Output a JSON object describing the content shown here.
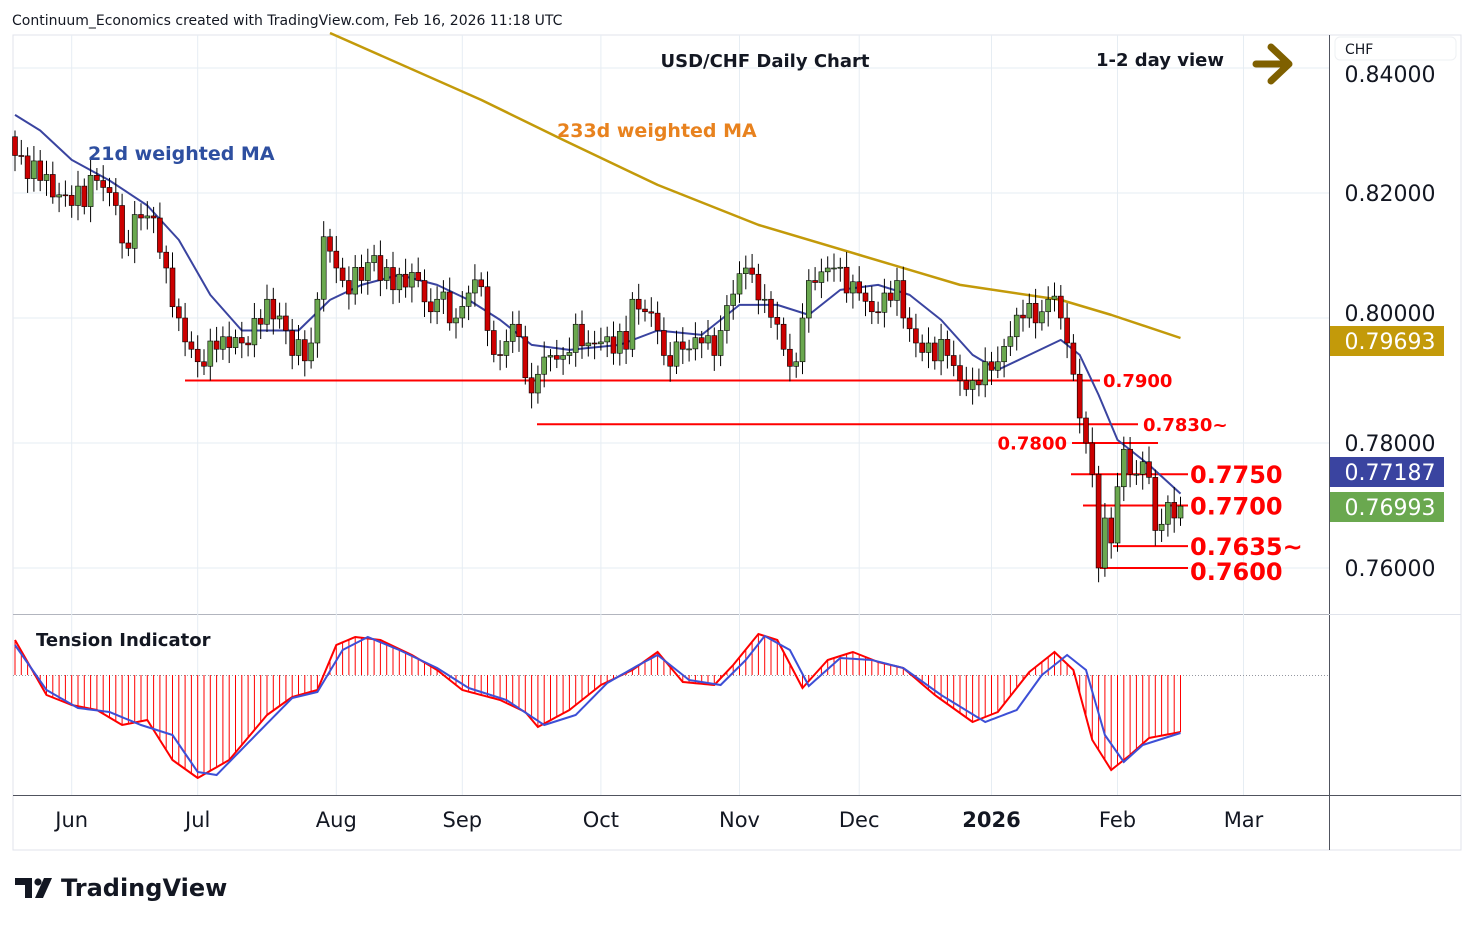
{
  "header": {
    "attribution": "Continuum_Economics created with TradingView.com, Feb 16, 2026 11:18 UTC",
    "title": "USD/CHF Daily Chart",
    "view": "1-2 day view",
    "view_icon": "right-arrow-icon",
    "arrow_color": "#7f6000"
  },
  "price_axis": {
    "currency": "CHF",
    "ticks": [
      "0.84000",
      "0.82000",
      "0.80000",
      "0.78000",
      "0.76000"
    ],
    "badges": [
      {
        "label": "0.79693",
        "color": "#c39a0a"
      },
      {
        "label": "0.77187",
        "color": "#3a44a0"
      },
      {
        "label": "0.76993",
        "color": "#6aa84f"
      }
    ]
  },
  "time_axis": {
    "ticks": [
      "Jun",
      "Jul",
      "Aug",
      "Sep",
      "Oct",
      "Nov",
      "Dec",
      "2026",
      "Feb",
      "Mar"
    ]
  },
  "labels": {
    "ma21": "21d weighted MA",
    "ma233": "233d weighted MA",
    "indicator": "Tension Indicator",
    "brand": "TradingView"
  },
  "levels": [
    {
      "value": 0.79,
      "label": "0.7900"
    },
    {
      "value": 0.783,
      "label": "0.7830~"
    },
    {
      "value": 0.78,
      "label": "0.7800"
    },
    {
      "value": 0.775,
      "label": "0.7750"
    },
    {
      "value": 0.77,
      "label": "0.7700"
    },
    {
      "value": 0.7635,
      "label": "0.7635~"
    },
    {
      "value": 0.76,
      "label": "0.7600"
    }
  ],
  "chart_data": {
    "type": "candlestick",
    "title": "USD/CHF Daily Chart",
    "x_unit": "trading day index (0 = late May 2025, 185 = Feb 16 2026)",
    "month_ticks_day": {
      "Jun": 9,
      "Jul": 29,
      "Aug": 51,
      "Sep": 71,
      "Oct": 93,
      "Nov": 115,
      "Dec": 134,
      "2026": 155,
      "Feb": 175,
      "Mar": 195
    },
    "ylim": [
      0.7535,
      0.8465
    ],
    "close_keypoints": [
      [
        0,
        0.826
      ],
      [
        4,
        0.822
      ],
      [
        9,
        0.818
      ],
      [
        13,
        0.822
      ],
      [
        16,
        0.818
      ],
      [
        17,
        0.812
      ],
      [
        20,
        0.816
      ],
      [
        22,
        0.816
      ],
      [
        24,
        0.808
      ],
      [
        26,
        0.8
      ],
      [
        28,
        0.795
      ],
      [
        29,
        0.793
      ],
      [
        32,
        0.795
      ],
      [
        33,
        0.797
      ],
      [
        36,
        0.796
      ],
      [
        39,
        0.799
      ],
      [
        40,
        0.803
      ],
      [
        43,
        0.798
      ],
      [
        44,
        0.794
      ],
      [
        47,
        0.796
      ],
      [
        48,
        0.803
      ],
      [
        49,
        0.813
      ],
      [
        51,
        0.808
      ],
      [
        52,
        0.806
      ],
      [
        55,
        0.806
      ],
      [
        57,
        0.81
      ],
      [
        58,
        0.806
      ],
      [
        61,
        0.807
      ],
      [
        64,
        0.806
      ],
      [
        66,
        0.801
      ],
      [
        67,
        0.803
      ],
      [
        70,
        0.8
      ],
      [
        72,
        0.804
      ],
      [
        74,
        0.805
      ],
      [
        75,
        0.798
      ],
      [
        77,
        0.794
      ],
      [
        79,
        0.799
      ],
      [
        80,
        0.797
      ],
      [
        82,
        0.788
      ],
      [
        83,
        0.791
      ],
      [
        85,
        0.794
      ],
      [
        87,
        0.794
      ],
      [
        89,
        0.799
      ],
      [
        91,
        0.796
      ],
      [
        94,
        0.797
      ],
      [
        97,
        0.795
      ],
      [
        98,
        0.803
      ],
      [
        100,
        0.801
      ],
      [
        102,
        0.798
      ],
      [
        103,
        0.794
      ],
      [
        106,
        0.795
      ],
      [
        109,
        0.796
      ],
      [
        111,
        0.794
      ],
      [
        112,
        0.798
      ],
      [
        113,
        0.802
      ],
      [
        116,
        0.808
      ],
      [
        117,
        0.807
      ],
      [
        119,
        0.803
      ],
      [
        121,
        0.799
      ],
      [
        122,
        0.795
      ],
      [
        124,
        0.793
      ],
      [
        125,
        0.8
      ],
      [
        126,
        0.806
      ],
      [
        129,
        0.808
      ],
      [
        130,
        0.808
      ],
      [
        132,
        0.804
      ],
      [
        134,
        0.804
      ],
      [
        136,
        0.801
      ],
      [
        138,
        0.804
      ],
      [
        140,
        0.806
      ],
      [
        141,
        0.8
      ],
      [
        143,
        0.796
      ],
      [
        145,
        0.796
      ],
      [
        148,
        0.794
      ],
      [
        150,
        0.79
      ],
      [
        152,
        0.79
      ],
      [
        154,
        0.793
      ],
      [
        156,
        0.793
      ],
      [
        158,
        0.797
      ],
      [
        160,
        0.8
      ],
      [
        163,
        0.801
      ],
      [
        164,
        0.803
      ],
      [
        165,
        0.8035
      ],
      [
        166,
        0.8
      ],
      [
        167,
        0.796
      ],
      [
        168,
        0.791
      ],
      [
        169,
        0.784
      ],
      [
        170,
        0.78
      ],
      [
        171,
        0.775
      ],
      [
        172,
        0.76
      ],
      [
        173,
        0.768
      ],
      [
        174,
        0.764
      ],
      [
        175,
        0.773
      ],
      [
        176,
        0.779
      ],
      [
        177,
        0.775
      ],
      [
        178,
        0.775
      ],
      [
        179,
        0.777
      ],
      [
        180,
        0.7745
      ],
      [
        181,
        0.766
      ],
      [
        182,
        0.767
      ],
      [
        183,
        0.7705
      ],
      [
        184,
        0.768
      ],
      [
        185,
        0.7699
      ]
    ],
    "series": [
      {
        "name": "21d weighted MA",
        "color": "#3a44a0",
        "points": [
          [
            0,
            0.8325
          ],
          [
            4,
            0.83
          ],
          [
            9,
            0.8253
          ],
          [
            15,
            0.822
          ],
          [
            21,
            0.818
          ],
          [
            26,
            0.8125
          ],
          [
            31,
            0.8037
          ],
          [
            36,
            0.798
          ],
          [
            40,
            0.798
          ],
          [
            45,
            0.798
          ],
          [
            50,
            0.8029
          ],
          [
            55,
            0.8053
          ],
          [
            61,
            0.8069
          ],
          [
            67,
            0.8053
          ],
          [
            72,
            0.8029
          ],
          [
            77,
            0.7997
          ],
          [
            82,
            0.7957
          ],
          [
            88,
            0.7949
          ],
          [
            96,
            0.7957
          ],
          [
            102,
            0.798
          ],
          [
            109,
            0.7973
          ],
          [
            115,
            0.8021
          ],
          [
            121,
            0.8021
          ],
          [
            126,
            0.8005
          ],
          [
            131,
            0.8045
          ],
          [
            137,
            0.8053
          ],
          [
            142,
            0.8037
          ],
          [
            147,
            0.7997
          ],
          [
            152,
            0.7941
          ],
          [
            156,
            0.7917
          ],
          [
            161,
            0.7941
          ],
          [
            166,
            0.7965
          ],
          [
            169,
            0.7941
          ],
          [
            172,
            0.7877
          ],
          [
            175,
            0.7805
          ],
          [
            180,
            0.7765
          ],
          [
            185,
            0.7719
          ]
        ]
      },
      {
        "name": "233d weighted MA",
        "color": "#c39a0a",
        "points": [
          [
            50,
            0.8456
          ],
          [
            74,
            0.8349
          ],
          [
            87,
            0.8285
          ],
          [
            102,
            0.8213
          ],
          [
            118,
            0.8149
          ],
          [
            134,
            0.8101
          ],
          [
            150,
            0.8053
          ],
          [
            166,
            0.8029
          ],
          [
            174,
            0.8005
          ],
          [
            185,
            0.7968
          ]
        ]
      }
    ],
    "indicator": {
      "name": "Tension Indicator",
      "zero": 0,
      "fast": {
        "color": "#ff0000",
        "points": [
          [
            0,
            0.35
          ],
          [
            5,
            -0.2
          ],
          [
            9,
            -0.3
          ],
          [
            13,
            -0.35
          ],
          [
            17,
            -0.5
          ],
          [
            21,
            -0.45
          ],
          [
            25,
            -0.85
          ],
          [
            29,
            -1.03
          ],
          [
            34,
            -0.85
          ],
          [
            40,
            -0.4
          ],
          [
            44,
            -0.22
          ],
          [
            48,
            -0.15
          ],
          [
            51,
            0.3
          ],
          [
            54,
            0.38
          ],
          [
            58,
            0.35
          ],
          [
            63,
            0.2
          ],
          [
            67,
            0.05
          ],
          [
            71,
            -0.15
          ],
          [
            77,
            -0.25
          ],
          [
            81,
            -0.37
          ],
          [
            83,
            -0.52
          ],
          [
            88,
            -0.35
          ],
          [
            93,
            -0.1
          ],
          [
            98,
            0.05
          ],
          [
            102,
            0.23
          ],
          [
            106,
            -0.07
          ],
          [
            111,
            -0.1
          ],
          [
            114,
            0.1
          ],
          [
            118,
            0.41
          ],
          [
            121,
            0.35
          ],
          [
            125,
            -0.13
          ],
          [
            129,
            0.15
          ],
          [
            133,
            0.23
          ],
          [
            137,
            0.13
          ],
          [
            141,
            0.07
          ],
          [
            146,
            -0.2
          ],
          [
            152,
            -0.47
          ],
          [
            156,
            -0.37
          ],
          [
            161,
            0.03
          ],
          [
            165,
            0.23
          ],
          [
            168,
            0.05
          ],
          [
            171,
            -0.65
          ],
          [
            174,
            -0.95
          ],
          [
            177,
            -0.8
          ],
          [
            180,
            -0.63
          ],
          [
            185,
            -0.57
          ]
        ]
      },
      "slow": {
        "color": "#3d4fd6",
        "points": [
          [
            0,
            0.3
          ],
          [
            5,
            -0.15
          ],
          [
            10,
            -0.33
          ],
          [
            15,
            -0.37
          ],
          [
            20,
            -0.5
          ],
          [
            25,
            -0.6
          ],
          [
            29,
            -0.97
          ],
          [
            32,
            -1.0
          ],
          [
            39,
            -0.55
          ],
          [
            44,
            -0.23
          ],
          [
            48,
            -0.17
          ],
          [
            52,
            0.25
          ],
          [
            56,
            0.38
          ],
          [
            61,
            0.25
          ],
          [
            67,
            0.07
          ],
          [
            72,
            -0.13
          ],
          [
            78,
            -0.25
          ],
          [
            84,
            -0.5
          ],
          [
            89,
            -0.4
          ],
          [
            94,
            -0.08
          ],
          [
            99,
            0.1
          ],
          [
            102,
            0.2
          ],
          [
            107,
            -0.05
          ],
          [
            112,
            -0.1
          ],
          [
            116,
            0.15
          ],
          [
            119,
            0.39
          ],
          [
            123,
            0.25
          ],
          [
            126,
            -0.11
          ],
          [
            131,
            0.17
          ],
          [
            136,
            0.15
          ],
          [
            141,
            0.07
          ],
          [
            147,
            -0.2
          ],
          [
            154,
            -0.47
          ],
          [
            159,
            -0.35
          ],
          [
            163,
            0.0
          ],
          [
            167,
            0.2
          ],
          [
            170,
            0.05
          ],
          [
            173,
            -0.6
          ],
          [
            176,
            -0.87
          ],
          [
            179,
            -0.7
          ],
          [
            185,
            -0.58
          ]
        ]
      }
    }
  }
}
